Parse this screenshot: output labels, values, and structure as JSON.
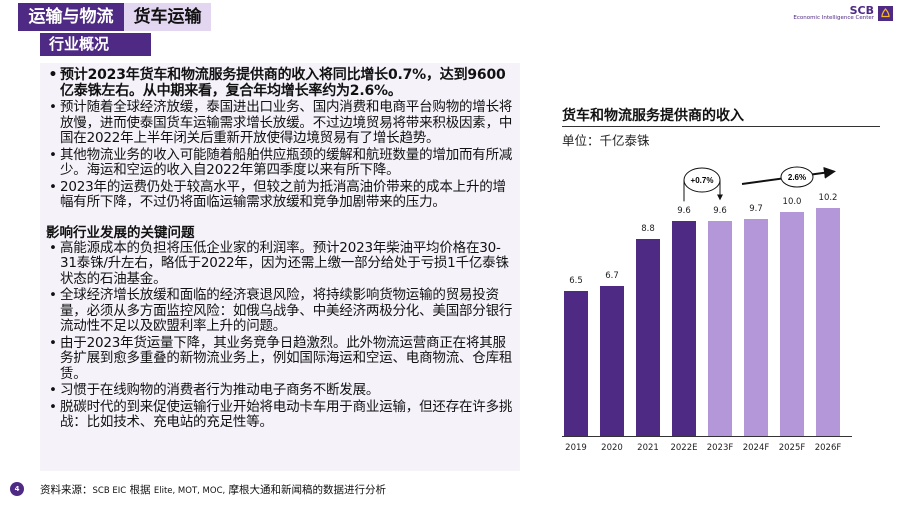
{
  "header": {
    "tab_main": "运输与物流",
    "tab_sub": "货车运输",
    "section": "行业概况"
  },
  "logo": {
    "brand": "SCB",
    "subtitle": "Economic Intelligence Center"
  },
  "overview": {
    "bullets": [
      {
        "bold": true,
        "text": "预计2023年货车和物流服务提供商的收入将同比增长0.7%，达到9600亿泰铢左右。从中期来看，复合年均增长率约为2.6%。"
      },
      {
        "bold": false,
        "text": "预计随着全球经济放缓，泰国进出口业务、国内消费和电商平台购物的增长将放慢，进而使泰国货车运输需求增长放缓。不过边境贸易将带来积极因素，中国在2022年上半年闭关后重新开放使得边境贸易有了增长趋势。"
      },
      {
        "bold": false,
        "text": "其他物流业务的收入可能随着船舶供应瓶颈的缓解和航班数量的增加而有所减少。海运和空运的收入自2022年第四季度以来有所下降。"
      },
      {
        "bold": false,
        "text": "2023年的运费仍处于较高水平，但较之前为抵消高油价带来的成本上升的增幅有所下降，不过仍将面临运输需求放缓和竞争加剧带来的压力。"
      }
    ]
  },
  "issues": {
    "heading": "影响行业发展的关键问题",
    "bullets": [
      "高能源成本的负担将压低企业家的利润率。预计2023年柴油平均价格在30-31泰铢/升左右，略低于2022年，因为还需上缴一部分给处于亏损1千亿泰铢状态的石油基金。",
      "全球经济增长放缓和面临的经济衰退风险，将持续影响货物运输的贸易投资量，必须从多方面监控风险：如俄乌战争、中美经济两极分化、美国部分银行流动性不足以及欧盟利率上升的问题。",
      "由于2023年货运量下降，其业务竞争日趋激烈。此外物流运营商正在将其服务扩展到愈多重叠的新物流业务上，例如国际海运和空运、电商物流、仓库租赁。",
      "习惯于在线购物的消费者行为推动电子商务不断发展。",
      "脱碳时代的到来促使运输行业开始将电动卡车用于商业运输，但还存在许多挑战：比如技术、充电站的充足性等。"
    ]
  },
  "chart_data": {
    "type": "bar",
    "title": "货车和物流服务提供商的收入",
    "ylabel": "单位：千亿泰铢",
    "xlabel": "",
    "categories": [
      "2019",
      "2020",
      "2021",
      "2022E",
      "2023F",
      "2024F",
      "2025F",
      "2026F"
    ],
    "values": [
      6.5,
      6.7,
      8.8,
      9.6,
      9.6,
      9.7,
      10.0,
      10.2
    ],
    "value_labels": [
      "6.5",
      "6.7",
      "8.8",
      "9.6",
      "9.6",
      "9.7",
      "10.0",
      "10.2"
    ],
    "bar_colors": [
      "#4e2a84",
      "#4e2a84",
      "#4e2a84",
      "#4e2a84",
      "#b497d9",
      "#b497d9",
      "#b497d9",
      "#b497d9"
    ],
    "annotations": [
      {
        "text": "+0.7%",
        "from": "2022E",
        "to": "2023F"
      },
      {
        "text": "2.6%",
        "from": "2024F",
        "to": "2026F"
      }
    ],
    "grid": false,
    "legend": "none"
  },
  "footer": {
    "page_number": "4",
    "source_prefix": "资料来源：",
    "source_org": "SCB EIC",
    "source_mid": " 根据 ",
    "source_refs": "Elite, MOT, MOC,",
    "source_suffix": " 摩根大通和新闻稿的数据进行分析"
  },
  "colors": {
    "brand_purple": "#4e2a84",
    "light_purple": "#b497d9",
    "tab_light": "#e3d6f1",
    "panel_bg": "#f5f2fa"
  }
}
